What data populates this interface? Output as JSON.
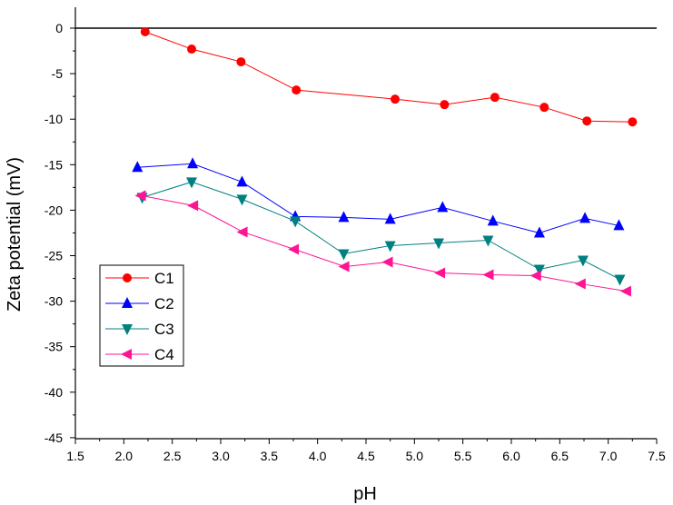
{
  "chart_data": {
    "type": "line",
    "title": "",
    "xlabel": "pH",
    "ylabel": "Zeta potential (mV)",
    "xlim": [
      1.5,
      7.5
    ],
    "ylim": [
      -45,
      2
    ],
    "xticks": [
      "1.5",
      "2.0",
      "2.5",
      "3.0",
      "3.5",
      "4.0",
      "4.5",
      "5.0",
      "5.5",
      "6.0",
      "6.5",
      "7.0",
      "7.5"
    ],
    "yticks": [
      "0",
      "-5",
      "-10",
      "-15",
      "-20",
      "-25",
      "-30",
      "-35",
      "-40",
      "-45"
    ],
    "zero_line": true,
    "grid": false,
    "legend_position": "center-left",
    "series": [
      {
        "name": "C1",
        "color": "#ff0000",
        "marker": "circle",
        "x": [
          2.22,
          2.7,
          3.21,
          3.78,
          4.8,
          5.31,
          5.83,
          6.34,
          6.78,
          7.25
        ],
        "y": [
          -0.4,
          -2.3,
          -3.7,
          -6.8,
          -7.8,
          -8.4,
          -7.6,
          -8.7,
          -10.2,
          -10.3
        ]
      },
      {
        "name": "C2",
        "color": "#0000ff",
        "marker": "triangle-up",
        "x": [
          2.14,
          2.71,
          3.22,
          3.77,
          4.27,
          4.75,
          5.29,
          5.81,
          6.29,
          6.76,
          7.11
        ],
        "y": [
          -15.3,
          -14.9,
          -16.9,
          -20.7,
          -20.8,
          -21.0,
          -19.7,
          -21.2,
          -22.5,
          -20.9,
          -21.7
        ]
      },
      {
        "name": "C3",
        "color": "#008080",
        "marker": "triangle-down",
        "x": [
          2.19,
          2.7,
          3.22,
          3.77,
          4.27,
          4.75,
          5.25,
          5.76,
          6.29,
          6.74,
          7.12
        ],
        "y": [
          -18.6,
          -16.9,
          -18.8,
          -21.2,
          -24.8,
          -23.9,
          -23.6,
          -23.3,
          -26.5,
          -25.5,
          -27.6
        ]
      },
      {
        "name": "C4",
        "color": "#ff1493",
        "marker": "triangle-left",
        "x": [
          2.18,
          2.72,
          3.23,
          3.76,
          4.28,
          4.73,
          5.27,
          5.77,
          6.26,
          6.72,
          7.19
        ],
        "y": [
          -18.4,
          -19.5,
          -22.4,
          -24.3,
          -26.2,
          -25.7,
          -26.9,
          -27.1,
          -27.2,
          -28.1,
          -28.9
        ]
      }
    ]
  }
}
